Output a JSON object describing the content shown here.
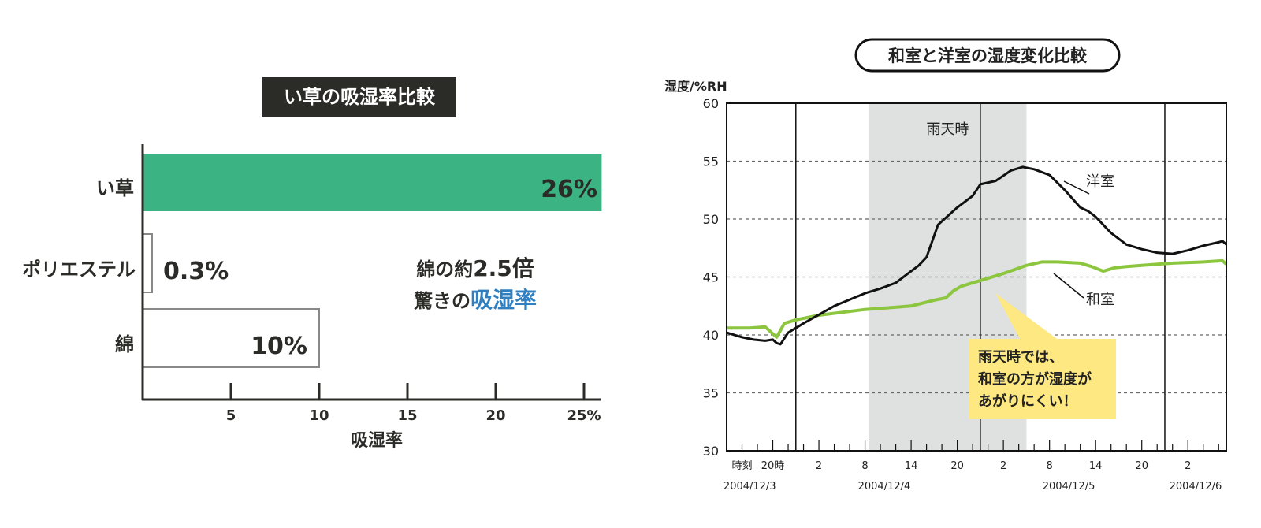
{
  "chart_data": [
    {
      "type": "bar",
      "orientation": "horizontal",
      "title": "い草の吸湿率比較",
      "categories": [
        "い草",
        "ポリエステル",
        "綿"
      ],
      "values": [
        26,
        0.3,
        10
      ],
      "value_labels": [
        "26%",
        "0.3%",
        "10%"
      ],
      "xlabel": "吸湿率",
      "xlim": [
        0,
        26
      ],
      "xticks": [
        5,
        10,
        15,
        20,
        25
      ],
      "xtick_labels": [
        "5",
        "10",
        "15",
        "20",
        "25%"
      ],
      "colors": {
        "highlight": "#3bb383",
        "outline": "#888888"
      },
      "annotation": {
        "line1_prefix": "綿の約",
        "line1_emphasis": "2.5倍",
        "line2_prefix": "驚きの",
        "line2_emphasis": "吸湿率"
      }
    },
    {
      "type": "line",
      "title": "和室と洋室の湿度変化比較",
      "ylabel": "湿度/%RH",
      "ylim": [
        30,
        60
      ],
      "yticks": [
        30,
        35,
        40,
        45,
        50,
        55,
        60
      ],
      "x_unit": "hours from 2004/12/3 18:00",
      "xlim": [
        0,
        65
      ],
      "x_tick_labels": [
        {
          "x": 2,
          "label": "時刻"
        },
        {
          "x": 6,
          "label": "20時"
        },
        {
          "x": 12,
          "label": "2"
        },
        {
          "x": 18,
          "label": "8"
        },
        {
          "x": 24,
          "label": "14"
        },
        {
          "x": 30,
          "label": "20"
        },
        {
          "x": 36,
          "label": "2"
        },
        {
          "x": 42,
          "label": "8"
        },
        {
          "x": 48,
          "label": "14"
        },
        {
          "x": 54,
          "label": "20"
        },
        {
          "x": 60,
          "label": "2"
        }
      ],
      "date_labels": [
        {
          "x": 3,
          "label": "2004/12/3"
        },
        {
          "x": 20.5,
          "label": "2004/12/4"
        },
        {
          "x": 44.5,
          "label": "2004/12/5"
        },
        {
          "x": 61,
          "label": "2004/12/6"
        }
      ],
      "day_boundaries": [
        9,
        33,
        57
      ],
      "rain_period": {
        "from": 18.5,
        "to": 39,
        "label": "雨天時"
      },
      "series": [
        {
          "name": "洋室",
          "color": "#111111",
          "x": [
            0,
            2,
            3.5,
            5,
            6,
            6.5,
            7,
            8,
            10,
            14,
            18,
            20,
            22,
            24,
            25,
            26,
            27.5,
            30,
            32,
            33,
            35,
            37,
            38.5,
            40,
            42,
            44,
            46,
            47,
            48,
            49,
            50,
            52,
            54,
            56,
            58,
            60,
            62,
            64,
            64.5,
            65
          ],
          "y": [
            40.2,
            39.8,
            39.6,
            39.5,
            39.6,
            39.3,
            39.2,
            40.2,
            41,
            42.5,
            43.6,
            44,
            44.5,
            45.5,
            46,
            46.7,
            49.5,
            51,
            52,
            53,
            53.3,
            54.2,
            54.5,
            54.3,
            53.8,
            52.5,
            51,
            50.7,
            50.2,
            49.5,
            48.8,
            47.8,
            47.4,
            47.1,
            47,
            47.3,
            47.7,
            48,
            48.1,
            47.8
          ]
        },
        {
          "name": "和室",
          "color": "#8cc63f",
          "x": [
            0,
            3,
            5,
            6.5,
            7.5,
            9,
            12,
            18,
            24,
            27,
            28.5,
            29.5,
            30.5,
            33,
            36,
            39,
            41,
            43,
            46,
            47.5,
            49,
            50.5,
            52,
            54,
            58,
            62,
            64.5,
            65
          ],
          "y": [
            40.6,
            40.6,
            40.7,
            39.8,
            41,
            41.3,
            41.7,
            42.2,
            42.5,
            43,
            43.2,
            43.8,
            44.2,
            44.7,
            45.3,
            46,
            46.3,
            46.3,
            46.2,
            45.9,
            45.5,
            45.8,
            45.9,
            46,
            46.2,
            46.3,
            46.4,
            46.1
          ]
        }
      ],
      "callout": [
        "雨天時では、",
        "和室の方が湿度が",
        "あがりにくい！"
      ]
    }
  ]
}
